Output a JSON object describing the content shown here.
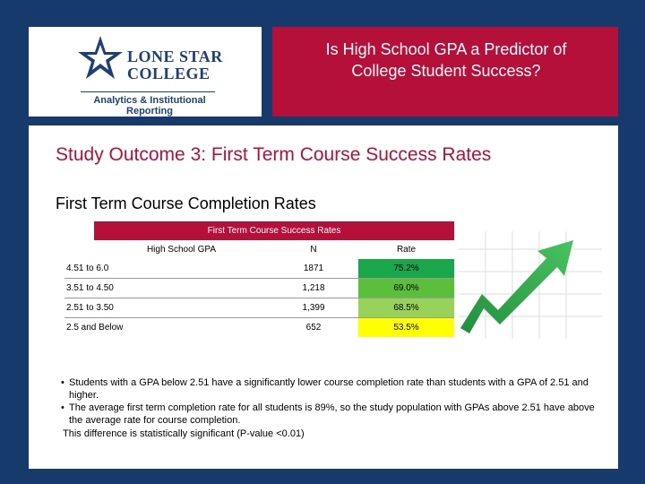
{
  "logo": {
    "name_line1": "LONE STAR",
    "name_line2": "COLLEGE",
    "subtitle_line1": "Analytics & Institutional",
    "subtitle_line2": "Reporting",
    "color": "#1d3f7a"
  },
  "header": {
    "title_line1": "Is High School GPA a Predictor of",
    "title_line2": "College Student Success?",
    "color": "#b4103a"
  },
  "content": {
    "outcome_title": "Study Outcome 3: First Term Course Success Rates",
    "completion_heading": "First Term Course Completion Rates"
  },
  "table": {
    "caption": "First Term Course Success Rates",
    "columns": [
      "High School GPA",
      "N",
      "Rate"
    ],
    "rows": [
      {
        "gpa": "4.51 to 6.0",
        "n": "1871",
        "rate": "75.2%",
        "color": "#1aa64a"
      },
      {
        "gpa": "3.51 to 4.50",
        "n": "1,218",
        "rate": "69.0%",
        "color": "#5cbf3c"
      },
      {
        "gpa": "2.51 to 3.50",
        "n": "1,399",
        "rate": "68.5%",
        "color": "#97d35a"
      },
      {
        "gpa": "2.5 and Below",
        "n": "652",
        "rate": "53.5%",
        "color": "#ffff00"
      }
    ]
  },
  "graphic": {
    "icon": "upward-trend-arrow-icon",
    "color": "#2aa84a"
  },
  "bullets": [
    "Students with a GPA below 2.51 have a significantly lower course completion rate than students with a GPA of 2.51 and higher.",
    "The average first term completion rate for all students is 89%, so the study population with GPAs above 2.51 have above the average rate for course completion."
  ],
  "note": "This difference is statistically significant (P-value <0.01)"
}
